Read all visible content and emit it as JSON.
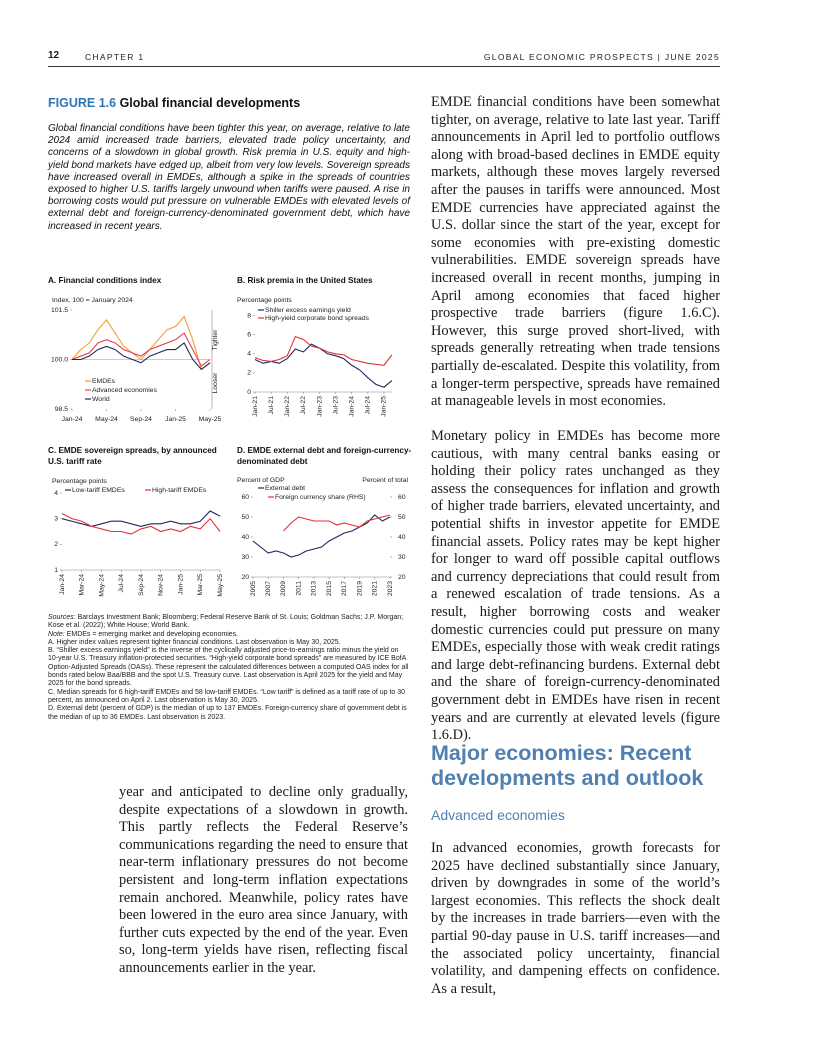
{
  "header": {
    "page_number": "12",
    "chapter": "CHAPTER 1",
    "running_title": "GLOBAL ECONOMIC PROSPECTS | JUNE 2025"
  },
  "figure": {
    "label": "FIGURE 1.6",
    "title": "Global financial developments",
    "description": "Global financial conditions have been tighter this year, on average, relative to late 2024 amid increased trade barriers, elevated trade policy uncertainty, and concerns of a slowdown in global growth. Risk premia in U.S. equity and high-yield bond markets have edged up, albeit from very low levels. Sovereign spreads have increased overall in EMDEs, although a spike in the spreads of countries exposed to higher U.S. tariffs largely unwound when tariffs were paused. A rise in borrowing costs would put pressure on vulnerable EMDEs with elevated levels of external debt and foreign-currency-denominated government debt, which have increased in recent years.",
    "panels": [
      {
        "type": "line",
        "title": "A. Financial conditions index",
        "y_label": "Index, 100 = January 2024",
        "annotations": [
          "Tighter",
          "Looser"
        ],
        "categories": [
          "Jan-24",
          null,
          null,
          null,
          "May-24",
          null,
          null,
          null,
          "Sep-24",
          null,
          null,
          null,
          "Jan-25",
          null,
          null,
          null,
          "May-25"
        ],
        "series": [
          {
            "name": "EMDEs",
            "color": "#f39c35",
            "values": [
              100.0,
              100.3,
              100.5,
              100.9,
              101.2,
              100.8,
              100.4,
              100.2,
              100.0,
              100.3,
              100.6,
              100.9,
              101.0,
              101.3,
              100.6,
              99.7,
              99.9
            ]
          },
          {
            "name": "Advanced economies",
            "color": "#e8404f",
            "values": [
              100.0,
              100.1,
              100.2,
              100.5,
              100.6,
              100.5,
              100.3,
              100.2,
              100.1,
              100.3,
              100.4,
              100.5,
              100.6,
              100.8,
              100.3,
              99.8,
              100.0
            ]
          },
          {
            "name": "World",
            "color": "#1b2a5e",
            "values": [
              100.0,
              100.0,
              100.1,
              100.3,
              100.4,
              100.3,
              100.1,
              100.0,
              99.9,
              100.1,
              100.2,
              100.3,
              100.3,
              100.5,
              100.0,
              99.7,
              99.9
            ]
          }
        ],
        "ylim": [
          98.5,
          101.5
        ],
        "yticks": [
          98.5,
          {
            "value": 100,
            "label": "100.0"
          },
          101.5
        ]
      },
      {
        "type": "line",
        "title": "B. Risk premia in the United States",
        "y_label": "Percentage points",
        "categories": [
          "Jan-21",
          null,
          "Jul-21",
          null,
          "Jan-22",
          null,
          "Jul-22",
          null,
          "Jan-23",
          null,
          "Jul-23",
          null,
          "Jan-24",
          null,
          "Jul-24",
          null,
          "Jan-25",
          null
        ],
        "series": [
          {
            "name": "Shiller excess earnings yield",
            "color": "#1b2a5e",
            "values": [
              3.4,
              3.0,
              3.2,
              3.0,
              3.5,
              4.5,
              4.2,
              5.0,
              4.6,
              4.0,
              3.8,
              3.5,
              2.8,
              2.3,
              1.5,
              0.8,
              0.5,
              1.2
            ]
          },
          {
            "name": "High-yield corporate bond spreads",
            "color": "#e0323c",
            "values": [
              3.6,
              3.3,
              3.2,
              3.4,
              3.8,
              5.8,
              5.5,
              4.8,
              4.6,
              4.2,
              4.0,
              3.9,
              3.4,
              3.2,
              3.0,
              2.9,
              2.8,
              3.9
            ]
          }
        ],
        "ylim": [
          0,
          9
        ],
        "yticks": [
          0,
          2,
          4,
          6,
          8
        ]
      },
      {
        "type": "line",
        "title": "C. EMDE sovereign spreads, by announced U.S. tariff rate",
        "y_label": "Percentage points",
        "categories": [
          "Jan-24",
          null,
          "Mar-24",
          null,
          "May-24",
          null,
          "Jul-24",
          null,
          "Sep-24",
          null,
          "Nov-24",
          null,
          "Jan-25",
          null,
          "Mar-25",
          null,
          "May-25"
        ],
        "series": [
          {
            "name": "Low-tariff EMDEs",
            "color": "#1b2a5e",
            "values": [
              3.0,
              2.9,
              2.8,
              2.7,
              2.8,
              2.9,
              2.9,
              2.8,
              2.7,
              2.8,
              2.8,
              2.9,
              2.8,
              2.8,
              2.9,
              3.3,
              3.1
            ]
          },
          {
            "name": "High-tariff EMDEs",
            "color": "#e0323c",
            "values": [
              3.2,
              3.0,
              2.9,
              2.7,
              2.6,
              2.5,
              2.5,
              2.4,
              2.6,
              2.7,
              2.5,
              2.6,
              2.5,
              2.7,
              2.6,
              3.0,
              2.5
            ]
          }
        ],
        "ylim": [
          1,
          4
        ],
        "yticks": [
          1,
          2,
          3,
          4
        ]
      },
      {
        "type": "line",
        "title": "D. EMDE external debt and foreign-currency-denominated debt",
        "y_label": "Percent of GDP",
        "y2_label": "Percent of total",
        "categories": [
          "2005",
          null,
          "2007",
          null,
          "2009",
          null,
          "2011",
          null,
          "2013",
          null,
          "2015",
          null,
          "2017",
          null,
          "2019",
          null,
          "2021",
          null,
          "2023"
        ],
        "series": [
          {
            "name": "External debt",
            "color": "#1b2a5e",
            "values": [
              38,
              35,
              32,
              33,
              32,
              30,
              31,
              33,
              34,
              35,
              38,
              40,
              42,
              43,
              45,
              47,
              51,
              48,
              50
            ]
          },
          {
            "name": "Foreign currency share (RHS)",
            "color": "#e0323c",
            "axis": "y2",
            "values": [
              null,
              null,
              null,
              null,
              43,
              47,
              50,
              49,
              48,
              48,
              48,
              46,
              47,
              46,
              45,
              48,
              49,
              50,
              51
            ]
          }
        ],
        "ylim": [
          20,
          60
        ],
        "yticks": [
          20,
          30,
          40,
          50,
          60
        ],
        "y2lim": [
          20,
          60
        ],
        "y2ticks": [
          20,
          30,
          40,
          50,
          60
        ]
      }
    ],
    "sources_label": "Sources:",
    "sources": "Barclays Investment Bank; Bloomberg; Federal Reserve Bank of St. Louis; Goldman Sachs; J.P. Morgan; Kose et al. (2022); White House; World Bank.",
    "note_label": "Note:",
    "note": "EMDEs = emerging market and developing economies.",
    "notes": [
      "A. Higher index values represent tighter financial conditions. Last observation is May 30, 2025.",
      "B. “Shiller excess earnings yield” is the inverse of the cyclically adjusted price-to-earnings ratio minus the yield on 10-year U.S. Treasury inflation-protected securities. “High-yield corporate bond spreads” are measured by ICE BofA Option-Adjusted Spreads (OASs). These represent the calculated differences between a computed OAS index for all bonds rated below Baa/BBB and the spot U.S. Treasury curve. Last observation is April 2025 for the yield and May 2025 for the bond spreads.",
      "C. Median spreads for 6 high-tariff EMDEs and 58 low-tariff EMDEs. “Low tariff” is defined as a tariff rate of up to 30 percent, as announced on April 2. Last observation is May 30, 2025.",
      "D. External debt (percent of GDP) is the median of up to 137 EMDEs. Foreign-currency share of government debt is the median of up to 36 EMDEs. Last observation is 2023."
    ]
  },
  "left_text": "year and anticipated to decline only gradually, despite expectations of a slowdown in growth. This partly reflects the Federal Reserve’s communications regarding the need to ensure that near-term inflationary pressures do not become persistent and long-term inflation expectations remain anchored. Meanwhile, policy rates have been lowered in the euro area since January, with further cuts expected by the end of the year. Even so, long-term yields have risen, reflecting fiscal announcements earlier in the year.",
  "right_text": {
    "paragraphs": [
      "EMDE financial conditions have been somewhat tighter, on average, relative to late last year. Tariff announcements in April led to portfolio outflows along with broad-based declines in EMDE equity markets, although these moves largely reversed after the pauses in tariffs were announced. Most EMDE currencies have appreciated against the U.S. dollar since the start of the year, except for some economies with pre-existing domestic vulnerabilities. EMDE sovereign spreads have increased overall in recent months, jumping in April among economies that faced higher prospective trade barriers (figure 1.6.C). However, this surge proved short-lived, with spreads generally retreating when trade tensions partially de-escalated. Despite this volatility, from a longer-term perspective, spreads have remained at manageable levels in most economies.",
      "Monetary policy in EMDEs has become more cautious, with many central banks easing or holding their policy rates unchanged as they assess the consequences for inflation and growth of higher trade barriers, elevated uncertainty, and potential shifts in investor appetite for EMDE financial assets. Policy rates may be kept higher for longer to ward off possible capital outflows and currency depreciations that could result from a renewed escalation of trade tensions. As a result, higher borrowing costs and weaker domestic currencies could put pressure on many EMDEs, especially those with weak credit ratings and large debt-refinancing burdens. External debt and the share of foreign-currency-denominated government debt in EMDEs have risen in recent years and are currently at elevated levels (figure 1.6.D)."
    ],
    "heading": "Major economies: Recent developments and outlook",
    "subheading": "Advanced economies",
    "paragraph_after": "In advanced economies, growth forecasts for 2025 have declined substantially since January, driven by downgrades in some of the world’s largest economies. This reflects the shock dealt by the increases in trade barriers—even with the partial 90-day pause in U.S. tariff increases—and the associated policy uncertainty, financial volatility, and dampening effects on confidence. As a result,"
  }
}
